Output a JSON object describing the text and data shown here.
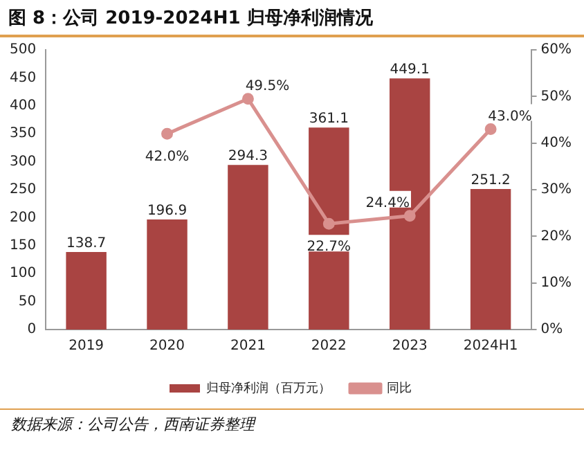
{
  "chart_data": {
    "type": "bar",
    "title": "图 8：公司 2019-2024H1 归母净利润情况",
    "categories": [
      "2019",
      "2020",
      "2021",
      "2022",
      "2023",
      "2024H1"
    ],
    "series": [
      {
        "name": "归母净利润（百万元）",
        "color": "#a94442",
        "values": [
          138.7,
          196.9,
          294.3,
          361.1,
          449.1,
          251.2
        ],
        "value_labels": [
          "138.7",
          "196.9",
          "294.3",
          "361.1",
          "449.1",
          "251.2"
        ]
      },
      {
        "name": "同比",
        "type": "line",
        "axis": "y2",
        "color": "#d9908e",
        "marker": "circle",
        "values": [
          null,
          42.0,
          49.5,
          22.7,
          24.4,
          43.0
        ],
        "value_labels": [
          null,
          "42.0%",
          "49.5%",
          "22.7%",
          "24.4%",
          "43.0%"
        ]
      }
    ],
    "ylim": [
      0,
      500
    ],
    "yticks": [
      0,
      50,
      100,
      150,
      200,
      250,
      300,
      350,
      400,
      450,
      500
    ],
    "y2lim": [
      0,
      60
    ],
    "y2ticks": [
      {
        "value": 0,
        "label": "0%"
      },
      {
        "value": 10,
        "label": "10%"
      },
      {
        "value": 20,
        "label": "20%"
      },
      {
        "value": 30,
        "label": "30%"
      },
      {
        "value": 40,
        "label": "40%"
      },
      {
        "value": 50,
        "label": "50%"
      },
      {
        "value": 60,
        "label": "60%"
      }
    ],
    "grid": false,
    "legend": "bottom",
    "annotations": [
      "数据来源：公司公告，西南证券整理"
    ]
  }
}
